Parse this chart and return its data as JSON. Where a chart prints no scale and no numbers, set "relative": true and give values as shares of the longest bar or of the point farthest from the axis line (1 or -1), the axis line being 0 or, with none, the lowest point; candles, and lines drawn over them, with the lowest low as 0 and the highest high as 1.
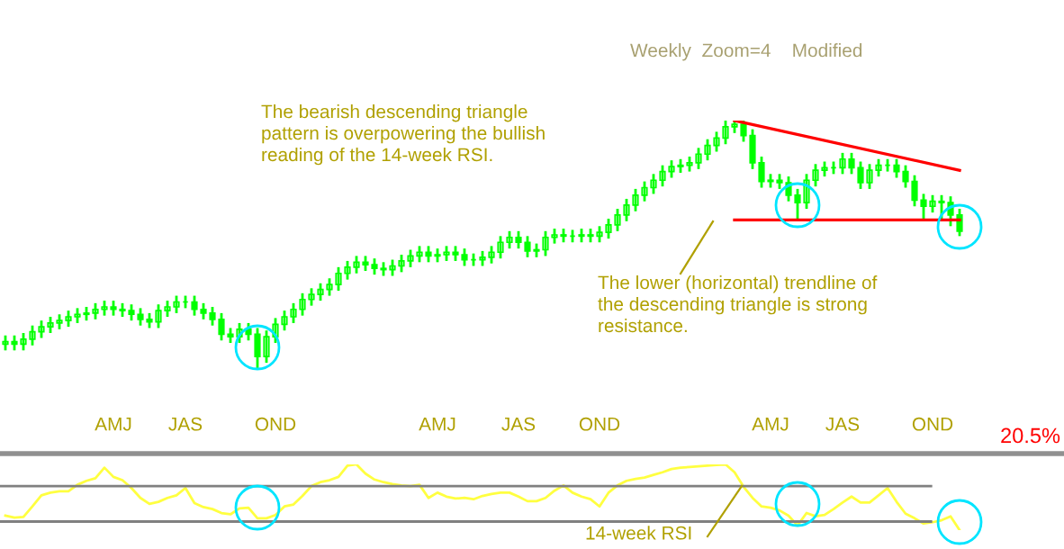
{
  "chart_data": [
    {
      "type": "candlestick",
      "relative": true,
      "tick_labels": false,
      "color": "#00ff00",
      "categories": [
        null,
        null,
        null,
        null,
        null,
        null,
        null,
        null,
        null,
        null,
        null,
        null,
        null,
        null,
        null,
        null,
        null,
        null,
        null,
        null,
        null,
        null,
        null,
        null,
        null,
        null,
        null,
        null,
        null,
        null,
        null,
        null,
        null,
        null,
        null,
        null,
        null,
        null,
        null,
        null,
        null,
        null,
        null,
        null,
        null,
        null,
        null,
        null,
        null,
        null,
        null,
        null,
        null,
        null,
        null,
        null,
        null,
        null,
        null,
        null,
        null,
        null,
        null,
        null,
        null,
        null,
        null,
        null,
        null,
        null,
        null,
        null,
        null,
        null,
        null,
        null,
        null,
        null,
        null,
        null,
        null,
        null,
        null,
        null,
        null,
        null,
        null,
        null,
        null,
        null,
        null,
        null,
        null,
        null,
        null,
        null,
        null,
        null,
        null,
        null,
        null,
        null,
        null,
        null,
        null,
        null,
        null
      ],
      "ohlc": [
        [
          0.1,
          0.13,
          0.08,
          0.11
        ],
        [
          0.11,
          0.13,
          0.08,
          0.1
        ],
        [
          0.1,
          0.14,
          0.08,
          0.12
        ],
        [
          0.12,
          0.17,
          0.1,
          0.15
        ],
        [
          0.15,
          0.19,
          0.13,
          0.17
        ],
        [
          0.17,
          0.205,
          0.15,
          0.185
        ],
        [
          0.185,
          0.215,
          0.165,
          0.195
        ],
        [
          0.195,
          0.23,
          0.175,
          0.21
        ],
        [
          0.21,
          0.24,
          0.19,
          0.22
        ],
        [
          0.22,
          0.245,
          0.2,
          0.225
        ],
        [
          0.225,
          0.26,
          0.205,
          0.24
        ],
        [
          0.24,
          0.27,
          0.22,
          0.25
        ],
        [
          0.25,
          0.27,
          0.22,
          0.24
        ],
        [
          0.24,
          0.26,
          0.215,
          0.235
        ],
        [
          0.235,
          0.255,
          0.2,
          0.22
        ],
        [
          0.22,
          0.24,
          0.18,
          0.2
        ],
        [
          0.2,
          0.22,
          0.17,
          0.19
        ],
        [
          0.19,
          0.255,
          0.17,
          0.235
        ],
        [
          0.235,
          0.27,
          0.215,
          0.25
        ],
        [
          0.25,
          0.29,
          0.23,
          0.27
        ],
        [
          0.27,
          0.29,
          0.25,
          0.27
        ],
        [
          0.27,
          0.29,
          0.22,
          0.24
        ],
        [
          0.24,
          0.26,
          0.205,
          0.225
        ],
        [
          0.225,
          0.245,
          0.18,
          0.2
        ],
        [
          0.2,
          0.22,
          0.12,
          0.14
        ],
        [
          0.14,
          0.16,
          0.11,
          0.13
        ],
        [
          0.13,
          0.18,
          0.11,
          0.16
        ],
        [
          0.16,
          0.18,
          0.12,
          0.14
        ],
        [
          0.14,
          0.16,
          0.0,
          0.05
        ],
        [
          0.05,
          0.15,
          0.03,
          0.13
        ],
        [
          0.13,
          0.2,
          0.11,
          0.18
        ],
        [
          0.18,
          0.23,
          0.16,
          0.21
        ],
        [
          0.21,
          0.26,
          0.19,
          0.24
        ],
        [
          0.24,
          0.3,
          0.22,
          0.28
        ],
        [
          0.28,
          0.32,
          0.26,
          0.3
        ],
        [
          0.3,
          0.34,
          0.28,
          0.32
        ],
        [
          0.32,
          0.36,
          0.3,
          0.34
        ],
        [
          0.34,
          0.405,
          0.32,
          0.385
        ],
        [
          0.385,
          0.43,
          0.365,
          0.41
        ],
        [
          0.41,
          0.45,
          0.39,
          0.43
        ],
        [
          0.43,
          0.45,
          0.4,
          0.42
        ],
        [
          0.42,
          0.44,
          0.385,
          0.405
        ],
        [
          0.405,
          0.425,
          0.38,
          0.4
        ],
        [
          0.4,
          0.435,
          0.38,
          0.415
        ],
        [
          0.415,
          0.455,
          0.395,
          0.435
        ],
        [
          0.435,
          0.475,
          0.415,
          0.455
        ],
        [
          0.455,
          0.49,
          0.435,
          0.47
        ],
        [
          0.47,
          0.49,
          0.435,
          0.455
        ],
        [
          0.455,
          0.48,
          0.435,
          0.46
        ],
        [
          0.46,
          0.49,
          0.44,
          0.47
        ],
        [
          0.47,
          0.49,
          0.44,
          0.46
        ],
        [
          0.46,
          0.48,
          0.42,
          0.44
        ],
        [
          0.44,
          0.46,
          0.42,
          0.44
        ],
        [
          0.44,
          0.47,
          0.42,
          0.45
        ],
        [
          0.45,
          0.49,
          0.43,
          0.47
        ],
        [
          0.47,
          0.53,
          0.45,
          0.51
        ],
        [
          0.51,
          0.55,
          0.49,
          0.53
        ],
        [
          0.53,
          0.55,
          0.49,
          0.51
        ],
        [
          0.51,
          0.53,
          0.455,
          0.475
        ],
        [
          0.475,
          0.5,
          0.455,
          0.48
        ],
        [
          0.48,
          0.55,
          0.46,
          0.53
        ],
        [
          0.53,
          0.56,
          0.51,
          0.54
        ],
        [
          0.54,
          0.56,
          0.515,
          0.535
        ],
        [
          0.535,
          0.555,
          0.515,
          0.535
        ],
        [
          0.535,
          0.56,
          0.515,
          0.54
        ],
        [
          0.54,
          0.56,
          0.515,
          0.535
        ],
        [
          0.535,
          0.57,
          0.515,
          0.55
        ],
        [
          0.55,
          0.6,
          0.53,
          0.58
        ],
        [
          0.58,
          0.64,
          0.56,
          0.62
        ],
        [
          0.62,
          0.68,
          0.6,
          0.66
        ],
        [
          0.66,
          0.72,
          0.64,
          0.7
        ],
        [
          0.7,
          0.75,
          0.68,
          0.73
        ],
        [
          0.73,
          0.78,
          0.71,
          0.76
        ],
        [
          0.76,
          0.815,
          0.74,
          0.795
        ],
        [
          0.795,
          0.835,
          0.775,
          0.815
        ],
        [
          0.815,
          0.84,
          0.795,
          0.82
        ],
        [
          0.82,
          0.85,
          0.8,
          0.83
        ],
        [
          0.83,
          0.885,
          0.81,
          0.865
        ],
        [
          0.865,
          0.92,
          0.845,
          0.9
        ],
        [
          0.9,
          0.95,
          0.88,
          0.93
        ],
        [
          0.93,
          0.995,
          0.91,
          0.975
        ],
        [
          0.975,
          1.0,
          0.955,
          0.985
        ],
        [
          0.985,
          0.995,
          0.92,
          0.94
        ],
        [
          0.94,
          0.96,
          0.81,
          0.83
        ],
        [
          0.83,
          0.85,
          0.735,
          0.755
        ],
        [
          0.755,
          0.78,
          0.735,
          0.76
        ],
        [
          0.76,
          0.78,
          0.73,
          0.75
        ],
        [
          0.75,
          0.77,
          0.68,
          0.7
        ],
        [
          0.7,
          0.72,
          0.6,
          0.67
        ],
        [
          0.67,
          0.78,
          0.65,
          0.76
        ],
        [
          0.76,
          0.82,
          0.74,
          0.8
        ],
        [
          0.8,
          0.83,
          0.78,
          0.81
        ],
        [
          0.81,
          0.83,
          0.79,
          0.81
        ],
        [
          0.81,
          0.865,
          0.79,
          0.845
        ],
        [
          0.845,
          0.865,
          0.79,
          0.81
        ],
        [
          0.81,
          0.83,
          0.73,
          0.75
        ],
        [
          0.75,
          0.82,
          0.73,
          0.8
        ],
        [
          0.8,
          0.84,
          0.78,
          0.82
        ],
        [
          0.82,
          0.84,
          0.8,
          0.82
        ],
        [
          0.82,
          0.84,
          0.775,
          0.795
        ],
        [
          0.795,
          0.815,
          0.735,
          0.755
        ],
        [
          0.755,
          0.775,
          0.66,
          0.68
        ],
        [
          0.68,
          0.7,
          0.6,
          0.655
        ],
        [
          0.655,
          0.695,
          0.635,
          0.675
        ],
        [
          0.675,
          0.695,
          0.6,
          0.67
        ],
        [
          0.67,
          0.69,
          0.58,
          0.62
        ],
        [
          0.62,
          0.64,
          0.54,
          0.555
        ]
      ],
      "series": [
        {
          "type": "line",
          "color": "#ff0000",
          "values": [
            null,
            null,
            null,
            null,
            null,
            null,
            null,
            null,
            null,
            null,
            null,
            null,
            null,
            null,
            null,
            null,
            null,
            null,
            null,
            null,
            null,
            null,
            null,
            null,
            null,
            null,
            null,
            null,
            null,
            null,
            null,
            null,
            null,
            null,
            null,
            null,
            null,
            null,
            null,
            null,
            null,
            null,
            null,
            null,
            null,
            null,
            null,
            null,
            null,
            null,
            null,
            null,
            null,
            null,
            null,
            null,
            null,
            null,
            null,
            null,
            null,
            null,
            null,
            null,
            null,
            null,
            null,
            null,
            null,
            null,
            null,
            null,
            null,
            null,
            null,
            null,
            null,
            null,
            null,
            null,
            null,
            1.0,
            null,
            null,
            null,
            null,
            null,
            null,
            null,
            null,
            null,
            null,
            null,
            null,
            null,
            null,
            null,
            null,
            null,
            null,
            null,
            null,
            null,
            null,
            null,
            null,
            0.8
          ]
        },
        {
          "type": "line",
          "color": "#ff0000",
          "values": [
            null,
            null,
            null,
            null,
            null,
            null,
            null,
            null,
            null,
            null,
            null,
            null,
            null,
            null,
            null,
            null,
            null,
            null,
            null,
            null,
            null,
            null,
            null,
            null,
            null,
            null,
            null,
            null,
            null,
            null,
            null,
            null,
            null,
            null,
            null,
            null,
            null,
            null,
            null,
            null,
            null,
            null,
            null,
            null,
            null,
            null,
            null,
            null,
            null,
            null,
            null,
            null,
            null,
            null,
            null,
            null,
            null,
            null,
            null,
            null,
            null,
            null,
            null,
            null,
            null,
            null,
            null,
            null,
            null,
            null,
            null,
            null,
            null,
            null,
            null,
            null,
            null,
            null,
            null,
            null,
            null,
            0.6,
            null,
            null,
            null,
            null,
            null,
            null,
            null,
            null,
            null,
            null,
            null,
            null,
            null,
            null,
            null,
            null,
            null,
            null,
            null,
            null,
            null,
            null,
            null,
            null,
            0.6
          ]
        }
      ],
      "annotations": [
        "Weekly  Zoom=4    Modified",
        "The bearish descending triangle\npattern is overpowering the bullish\nreading of the 14-week RSI.",
        "The lower (horizontal) trendline of\nthe descending triangle is strong\nresistance."
      ]
    },
    {
      "type": "line",
      "relative": true,
      "tick_labels": "x",
      "color": "#ffff40",
      "categories": [
        null,
        null,
        null,
        null,
        null,
        null,
        null,
        null,
        null,
        null,
        null,
        null,
        "AMJ",
        null,
        null,
        null,
        null,
        null,
        null,
        null,
        "JAS",
        null,
        null,
        null,
        null,
        null,
        null,
        null,
        null,
        null,
        "OND",
        null,
        null,
        null,
        null,
        null,
        null,
        null,
        null,
        null,
        null,
        null,
        null,
        null,
        null,
        null,
        null,
        null,
        "AMJ",
        null,
        null,
        null,
        null,
        null,
        null,
        null,
        null,
        "JAS",
        null,
        null,
        null,
        null,
        null,
        null,
        null,
        null,
        "OND",
        null,
        null,
        null,
        null,
        null,
        null,
        null,
        null,
        null,
        null,
        null,
        null,
        null,
        null,
        null,
        null,
        null,
        null,
        "AMJ",
        null,
        null,
        null,
        null,
        null,
        null,
        null,
        "JAS",
        null,
        null,
        null,
        null,
        null,
        null,
        null,
        null,
        null,
        "OND",
        null,
        null,
        null
      ],
      "values": [
        0.22,
        0.19,
        0.2,
        0.36,
        0.53,
        0.57,
        0.59,
        0.59,
        0.69,
        0.75,
        0.79,
        0.95,
        0.81,
        0.76,
        0.64,
        0.49,
        0.4,
        0.43,
        0.49,
        0.53,
        0.64,
        0.41,
        0.35,
        0.32,
        0.26,
        0.24,
        0.33,
        0.34,
        0.18,
        0.18,
        0.23,
        0.36,
        0.39,
        0.52,
        0.67,
        0.73,
        0.76,
        0.81,
        0.98,
        1.0,
        0.86,
        0.77,
        0.73,
        0.7,
        0.68,
        0.67,
        0.69,
        0.49,
        0.57,
        0.51,
        0.48,
        0.49,
        0.47,
        0.52,
        0.55,
        0.57,
        0.57,
        0.51,
        0.44,
        0.44,
        0.49,
        0.6,
        0.68,
        0.57,
        0.51,
        0.47,
        0.36,
        0.57,
        0.68,
        0.75,
        0.78,
        0.8,
        0.84,
        0.88,
        0.93,
        0.95,
        0.96,
        0.97,
        0.98,
        0.99,
        1.0,
        0.88,
        0.66,
        0.49,
        0.36,
        0.34,
        0.3,
        0.22,
        0.07,
        0.26,
        0.21,
        0.23,
        0.32,
        0.42,
        0.51,
        0.42,
        0.42,
        0.53,
        0.64,
        0.43,
        0.25,
        0.18,
        0.1,
        0.12,
        0.15,
        0.21,
        0.0
      ],
      "ref_lines": [
        {
          "axis": "y",
          "value": 0.67,
          "color": "#808080"
        },
        {
          "axis": "y",
          "value": 0.13,
          "color": "#808080"
        }
      ],
      "annotations": [
        "20.5%",
        "14-week RSI"
      ]
    }
  ]
}
